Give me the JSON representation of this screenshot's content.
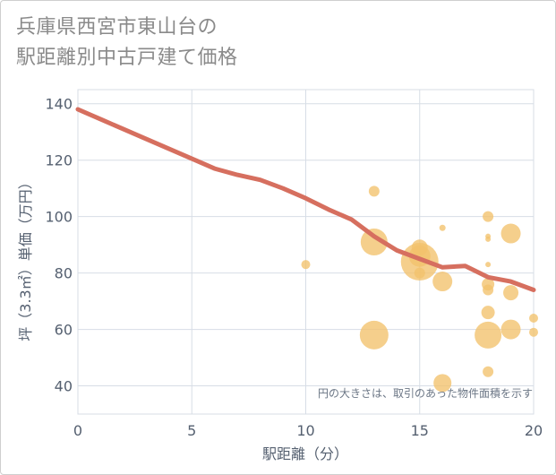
{
  "chart_data": {
    "type": "scatter",
    "title_line1": "兵庫県西宮市東山台の",
    "title_line2": "駅距離別中古戸建て価格",
    "xlabel": "駅距離（分）",
    "ylabel": "坪（3.3㎡）単価（万円）",
    "annotation": "円の大きさは、取引のあった物件面積を示す",
    "xlim": [
      0,
      20
    ],
    "ylim": [
      30,
      145
    ],
    "xticks": [
      0,
      5,
      10,
      15,
      20
    ],
    "yticks": [
      40,
      60,
      80,
      100,
      120,
      140
    ],
    "colors": {
      "bubble": "#f2c16b",
      "trend": "#d66f5f",
      "grid": "#d7dde6"
    },
    "points": [
      {
        "x": 10,
        "y": 83,
        "s": 5
      },
      {
        "x": 13,
        "y": 109,
        "s": 6
      },
      {
        "x": 13,
        "y": 91,
        "s": 15
      },
      {
        "x": 13,
        "y": 58,
        "s": 16
      },
      {
        "x": 15,
        "y": 89,
        "s": 9
      },
      {
        "x": 15,
        "y": 86,
        "s": 12
      },
      {
        "x": 15,
        "y": 84,
        "s": 21
      },
      {
        "x": 15,
        "y": 80,
        "s": 6
      },
      {
        "x": 16,
        "y": 96,
        "s": 3.5
      },
      {
        "x": 16,
        "y": 77,
        "s": 11
      },
      {
        "x": 16,
        "y": 41,
        "s": 10
      },
      {
        "x": 18,
        "y": 100,
        "s": 6
      },
      {
        "x": 18,
        "y": 93,
        "s": 3
      },
      {
        "x": 18,
        "y": 92,
        "s": 3
      },
      {
        "x": 18,
        "y": 83,
        "s": 3
      },
      {
        "x": 18,
        "y": 76,
        "s": 7
      },
      {
        "x": 18,
        "y": 74,
        "s": 6
      },
      {
        "x": 18,
        "y": 66,
        "s": 7.5
      },
      {
        "x": 18,
        "y": 58,
        "s": 15
      },
      {
        "x": 18,
        "y": 45,
        "s": 6
      },
      {
        "x": 19,
        "y": 94,
        "s": 11
      },
      {
        "x": 19,
        "y": 73,
        "s": 8.5
      },
      {
        "x": 19,
        "y": 60,
        "s": 11
      },
      {
        "x": 20,
        "y": 64,
        "s": 5
      },
      {
        "x": 20,
        "y": 59,
        "s": 5
      }
    ],
    "trend": {
      "x": [
        0,
        1,
        2,
        3,
        4,
        5,
        6,
        7,
        8,
        9,
        10,
        11,
        12,
        13,
        14,
        15,
        16,
        17,
        18,
        19,
        20
      ],
      "y": [
        138,
        134.5,
        131,
        127.5,
        124,
        120.5,
        117,
        114.8,
        113,
        110,
        106.5,
        102.5,
        99,
        93,
        88,
        85,
        82,
        82.5,
        78.5,
        77,
        74
      ]
    }
  }
}
